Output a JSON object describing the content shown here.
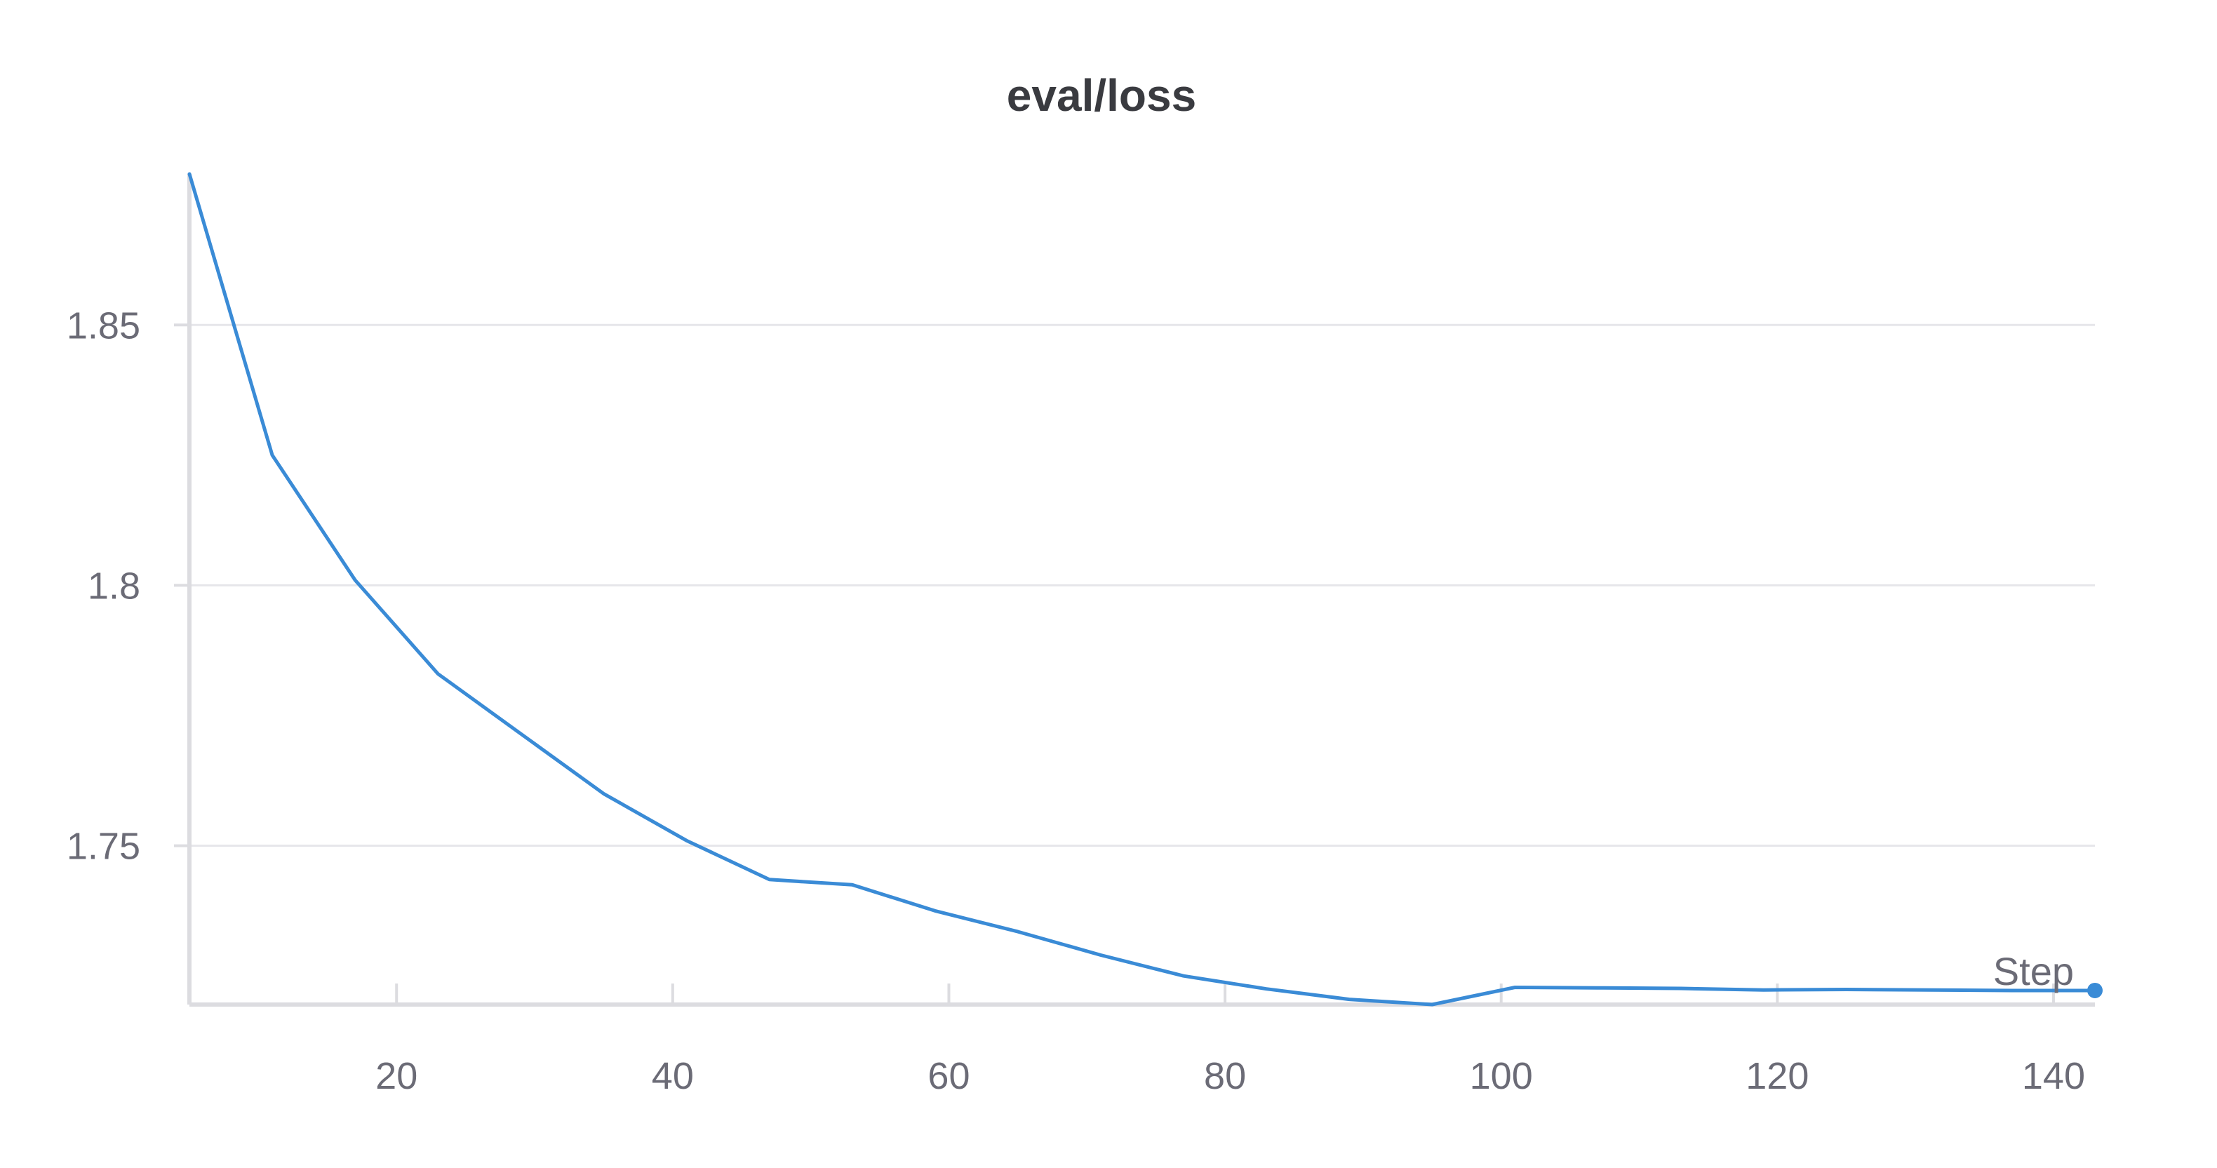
{
  "chart_data": {
    "type": "line",
    "title": "eval/loss",
    "xlabel": "Step",
    "ylabel": "",
    "xlim": [
      5,
      143
    ],
    "ylim": [
      1.7195,
      1.879
    ],
    "x_ticks": [
      20,
      40,
      60,
      80,
      100,
      120,
      140
    ],
    "y_ticks": [
      1.75,
      1.8,
      1.85
    ],
    "x_tick_labels": [
      "20",
      "40",
      "60",
      "80",
      "100",
      "120",
      "140"
    ],
    "y_tick_labels": [
      "1.75",
      "1.8",
      "1.85"
    ],
    "grid": {
      "horizontal": true,
      "vertical": false
    },
    "series": [
      {
        "color": "#3a8bd6",
        "x": [
          5,
          11,
          17,
          23,
          29,
          35,
          41,
          47,
          53,
          59,
          65,
          71,
          77,
          83,
          89,
          95,
          101,
          107,
          113,
          119,
          125,
          131,
          137,
          143
        ],
        "y": [
          1.879,
          1.825,
          1.801,
          1.783,
          1.7715,
          1.76,
          1.751,
          1.7435,
          1.7425,
          1.7375,
          1.7335,
          1.729,
          1.725,
          1.7225,
          1.7205,
          1.7195,
          1.7228,
          1.7227,
          1.7226,
          1.7223,
          1.7224,
          1.7223,
          1.7222,
          1.7222
        ]
      }
    ]
  }
}
